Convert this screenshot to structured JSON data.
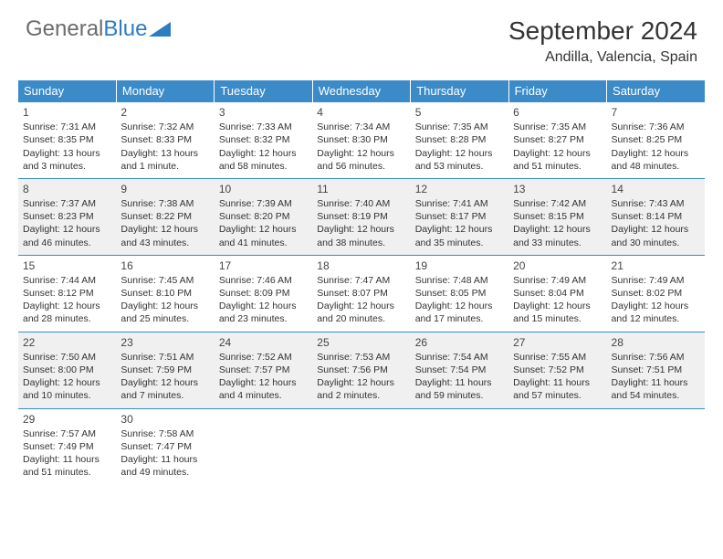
{
  "logo": {
    "text1": "General",
    "text2": "Blue"
  },
  "title": "September 2024",
  "location": "Andilla, Valencia, Spain",
  "colors": {
    "header_bg": "#3b8bc8",
    "header_text": "#ffffff",
    "shaded_bg": "#f0f0f0",
    "cell_text": "#333333",
    "border": "#3b8bc8"
  },
  "day_headers": [
    "Sunday",
    "Monday",
    "Tuesday",
    "Wednesday",
    "Thursday",
    "Friday",
    "Saturday"
  ],
  "weeks": [
    {
      "shaded": false,
      "days": [
        {
          "num": "1",
          "sunrise": "Sunrise: 7:31 AM",
          "sunset": "Sunset: 8:35 PM",
          "daylight1": "Daylight: 13 hours",
          "daylight2": "and 3 minutes."
        },
        {
          "num": "2",
          "sunrise": "Sunrise: 7:32 AM",
          "sunset": "Sunset: 8:33 PM",
          "daylight1": "Daylight: 13 hours",
          "daylight2": "and 1 minute."
        },
        {
          "num": "3",
          "sunrise": "Sunrise: 7:33 AM",
          "sunset": "Sunset: 8:32 PM",
          "daylight1": "Daylight: 12 hours",
          "daylight2": "and 58 minutes."
        },
        {
          "num": "4",
          "sunrise": "Sunrise: 7:34 AM",
          "sunset": "Sunset: 8:30 PM",
          "daylight1": "Daylight: 12 hours",
          "daylight2": "and 56 minutes."
        },
        {
          "num": "5",
          "sunrise": "Sunrise: 7:35 AM",
          "sunset": "Sunset: 8:28 PM",
          "daylight1": "Daylight: 12 hours",
          "daylight2": "and 53 minutes."
        },
        {
          "num": "6",
          "sunrise": "Sunrise: 7:35 AM",
          "sunset": "Sunset: 8:27 PM",
          "daylight1": "Daylight: 12 hours",
          "daylight2": "and 51 minutes."
        },
        {
          "num": "7",
          "sunrise": "Sunrise: 7:36 AM",
          "sunset": "Sunset: 8:25 PM",
          "daylight1": "Daylight: 12 hours",
          "daylight2": "and 48 minutes."
        }
      ]
    },
    {
      "shaded": true,
      "days": [
        {
          "num": "8",
          "sunrise": "Sunrise: 7:37 AM",
          "sunset": "Sunset: 8:23 PM",
          "daylight1": "Daylight: 12 hours",
          "daylight2": "and 46 minutes."
        },
        {
          "num": "9",
          "sunrise": "Sunrise: 7:38 AM",
          "sunset": "Sunset: 8:22 PM",
          "daylight1": "Daylight: 12 hours",
          "daylight2": "and 43 minutes."
        },
        {
          "num": "10",
          "sunrise": "Sunrise: 7:39 AM",
          "sunset": "Sunset: 8:20 PM",
          "daylight1": "Daylight: 12 hours",
          "daylight2": "and 41 minutes."
        },
        {
          "num": "11",
          "sunrise": "Sunrise: 7:40 AM",
          "sunset": "Sunset: 8:19 PM",
          "daylight1": "Daylight: 12 hours",
          "daylight2": "and 38 minutes."
        },
        {
          "num": "12",
          "sunrise": "Sunrise: 7:41 AM",
          "sunset": "Sunset: 8:17 PM",
          "daylight1": "Daylight: 12 hours",
          "daylight2": "and 35 minutes."
        },
        {
          "num": "13",
          "sunrise": "Sunrise: 7:42 AM",
          "sunset": "Sunset: 8:15 PM",
          "daylight1": "Daylight: 12 hours",
          "daylight2": "and 33 minutes."
        },
        {
          "num": "14",
          "sunrise": "Sunrise: 7:43 AM",
          "sunset": "Sunset: 8:14 PM",
          "daylight1": "Daylight: 12 hours",
          "daylight2": "and 30 minutes."
        }
      ]
    },
    {
      "shaded": false,
      "days": [
        {
          "num": "15",
          "sunrise": "Sunrise: 7:44 AM",
          "sunset": "Sunset: 8:12 PM",
          "daylight1": "Daylight: 12 hours",
          "daylight2": "and 28 minutes."
        },
        {
          "num": "16",
          "sunrise": "Sunrise: 7:45 AM",
          "sunset": "Sunset: 8:10 PM",
          "daylight1": "Daylight: 12 hours",
          "daylight2": "and 25 minutes."
        },
        {
          "num": "17",
          "sunrise": "Sunrise: 7:46 AM",
          "sunset": "Sunset: 8:09 PM",
          "daylight1": "Daylight: 12 hours",
          "daylight2": "and 23 minutes."
        },
        {
          "num": "18",
          "sunrise": "Sunrise: 7:47 AM",
          "sunset": "Sunset: 8:07 PM",
          "daylight1": "Daylight: 12 hours",
          "daylight2": "and 20 minutes."
        },
        {
          "num": "19",
          "sunrise": "Sunrise: 7:48 AM",
          "sunset": "Sunset: 8:05 PM",
          "daylight1": "Daylight: 12 hours",
          "daylight2": "and 17 minutes."
        },
        {
          "num": "20",
          "sunrise": "Sunrise: 7:49 AM",
          "sunset": "Sunset: 8:04 PM",
          "daylight1": "Daylight: 12 hours",
          "daylight2": "and 15 minutes."
        },
        {
          "num": "21",
          "sunrise": "Sunrise: 7:49 AM",
          "sunset": "Sunset: 8:02 PM",
          "daylight1": "Daylight: 12 hours",
          "daylight2": "and 12 minutes."
        }
      ]
    },
    {
      "shaded": true,
      "days": [
        {
          "num": "22",
          "sunrise": "Sunrise: 7:50 AM",
          "sunset": "Sunset: 8:00 PM",
          "daylight1": "Daylight: 12 hours",
          "daylight2": "and 10 minutes."
        },
        {
          "num": "23",
          "sunrise": "Sunrise: 7:51 AM",
          "sunset": "Sunset: 7:59 PM",
          "daylight1": "Daylight: 12 hours",
          "daylight2": "and 7 minutes."
        },
        {
          "num": "24",
          "sunrise": "Sunrise: 7:52 AM",
          "sunset": "Sunset: 7:57 PM",
          "daylight1": "Daylight: 12 hours",
          "daylight2": "and 4 minutes."
        },
        {
          "num": "25",
          "sunrise": "Sunrise: 7:53 AM",
          "sunset": "Sunset: 7:56 PM",
          "daylight1": "Daylight: 12 hours",
          "daylight2": "and 2 minutes."
        },
        {
          "num": "26",
          "sunrise": "Sunrise: 7:54 AM",
          "sunset": "Sunset: 7:54 PM",
          "daylight1": "Daylight: 11 hours",
          "daylight2": "and 59 minutes."
        },
        {
          "num": "27",
          "sunrise": "Sunrise: 7:55 AM",
          "sunset": "Sunset: 7:52 PM",
          "daylight1": "Daylight: 11 hours",
          "daylight2": "and 57 minutes."
        },
        {
          "num": "28",
          "sunrise": "Sunrise: 7:56 AM",
          "sunset": "Sunset: 7:51 PM",
          "daylight1": "Daylight: 11 hours",
          "daylight2": "and 54 minutes."
        }
      ]
    },
    {
      "shaded": false,
      "days": [
        {
          "num": "29",
          "sunrise": "Sunrise: 7:57 AM",
          "sunset": "Sunset: 7:49 PM",
          "daylight1": "Daylight: 11 hours",
          "daylight2": "and 51 minutes."
        },
        {
          "num": "30",
          "sunrise": "Sunrise: 7:58 AM",
          "sunset": "Sunset: 7:47 PM",
          "daylight1": "Daylight: 11 hours",
          "daylight2": "and 49 minutes."
        },
        {
          "empty": true
        },
        {
          "empty": true
        },
        {
          "empty": true
        },
        {
          "empty": true
        },
        {
          "empty": true
        }
      ]
    }
  ]
}
